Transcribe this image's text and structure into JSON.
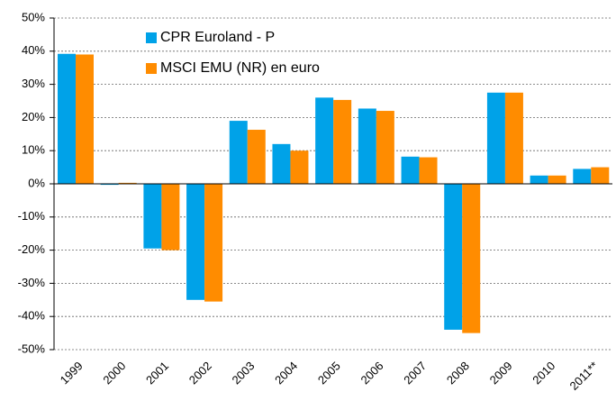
{
  "chart_data": {
    "type": "bar",
    "categories": [
      "1999",
      "2000",
      "2001",
      "2002",
      "2003",
      "2004",
      "2005",
      "2006",
      "2007",
      "2008",
      "2009",
      "2010",
      "2011**"
    ],
    "series": [
      {
        "name": "CPR Euroland - P",
        "color": "#00a2e8",
        "values": [
          39.2,
          -0.3,
          -19.5,
          -35,
          19,
          12,
          26,
          22.7,
          8.2,
          -44,
          27.5,
          2.5,
          4.5
        ]
      },
      {
        "name": "MSCI EMU (NR) en euro",
        "color": "#ff8c00",
        "values": [
          39,
          0.3,
          -20,
          -35.5,
          16.3,
          10,
          25.3,
          22,
          8,
          -45,
          27.5,
          2.5,
          5
        ]
      }
    ],
    "ylim": [
      -50,
      50
    ],
    "yticks": [
      {
        "value": -50,
        "label": "-50%"
      },
      {
        "value": -40,
        "label": "-40%"
      },
      {
        "value": -30,
        "label": "-30%"
      },
      {
        "value": -20,
        "label": "-20%"
      },
      {
        "value": -10,
        "label": "-10%"
      },
      {
        "value": 0,
        "label": "0%"
      },
      {
        "value": 10,
        "label": "10%"
      },
      {
        "value": 20,
        "label": "20%"
      },
      {
        "value": 30,
        "label": "30%"
      },
      {
        "value": 40,
        "label": "40%"
      },
      {
        "value": 50,
        "label": "50%"
      }
    ],
    "grid": true,
    "legend": "upper left"
  }
}
